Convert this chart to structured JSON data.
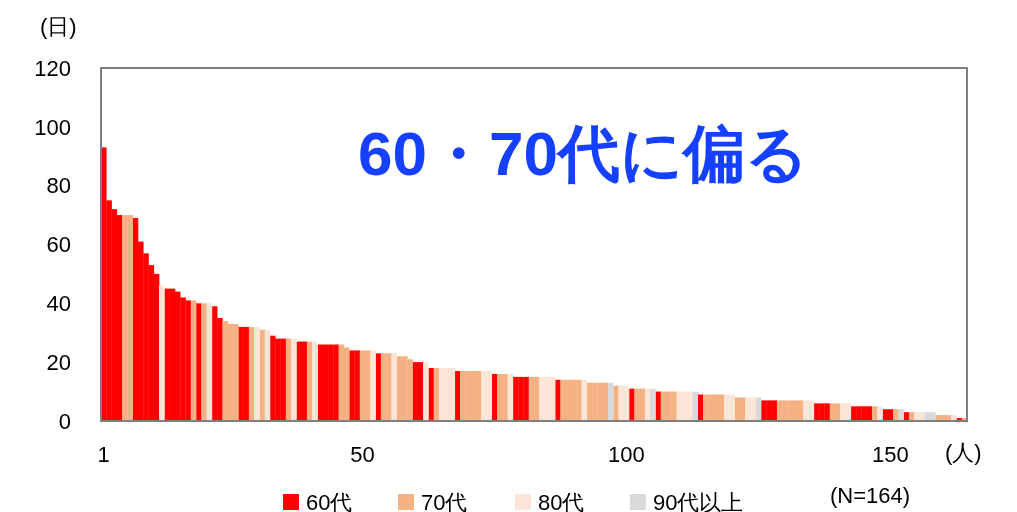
{
  "chart_data": {
    "type": "bar",
    "annotations": [
      "60・70代に偏る",
      "(N=164)"
    ],
    "xlabel": "(人)",
    "ylabel": "(日)",
    "ylim": [
      0,
      120
    ],
    "yticks": [
      0,
      20,
      40,
      60,
      80,
      100,
      120
    ],
    "grid": false,
    "legend": "bottom",
    "categories": [
      "1",
      null,
      null,
      null,
      null,
      null,
      null,
      null,
      null,
      null,
      null,
      null,
      null,
      null,
      null,
      null,
      null,
      null,
      null,
      null,
      null,
      null,
      null,
      null,
      null,
      null,
      null,
      null,
      null,
      null,
      null,
      null,
      null,
      null,
      null,
      null,
      null,
      null,
      null,
      null,
      null,
      null,
      null,
      null,
      null,
      null,
      null,
      null,
      null,
      "50",
      null,
      null,
      null,
      null,
      null,
      null,
      null,
      null,
      null,
      null,
      null,
      null,
      null,
      null,
      null,
      null,
      null,
      null,
      null,
      null,
      null,
      null,
      null,
      null,
      null,
      null,
      null,
      null,
      null,
      null,
      null,
      null,
      null,
      null,
      null,
      null,
      null,
      null,
      null,
      null,
      null,
      null,
      null,
      null,
      null,
      null,
      null,
      null,
      null,
      "100",
      null,
      null,
      null,
      null,
      null,
      null,
      null,
      null,
      null,
      null,
      null,
      null,
      null,
      null,
      null,
      null,
      null,
      null,
      null,
      null,
      null,
      null,
      null,
      null,
      null,
      null,
      null,
      null,
      null,
      null,
      null,
      null,
      null,
      null,
      null,
      null,
      null,
      null,
      null,
      null,
      null,
      null,
      null,
      null,
      null,
      null,
      null,
      null,
      null,
      "150",
      null,
      null,
      null,
      null,
      null,
      null,
      null,
      null,
      null,
      null,
      null,
      null,
      null,
      null
    ],
    "series": [
      {
        "name": "60代",
        "color": "#ff0000",
        "values": [
          93,
          75,
          72,
          70,
          null,
          null,
          69,
          61,
          57,
          53,
          50,
          null,
          45,
          45,
          44,
          42,
          41,
          null,
          40,
          null,
          null,
          39,
          35,
          null,
          null,
          null,
          32,
          32,
          null,
          null,
          null,
          null,
          29,
          28,
          28,
          null,
          null,
          27,
          27,
          null,
          null,
          26,
          26,
          26,
          26,
          null,
          null,
          24,
          24,
          null,
          null,
          null,
          23,
          null,
          null,
          null,
          null,
          null,
          null,
          20,
          20,
          null,
          18,
          null,
          null,
          null,
          null,
          17,
          null,
          null,
          null,
          null,
          null,
          null,
          16,
          null,
          null,
          null,
          15,
          15,
          15,
          null,
          null,
          null,
          null,
          null,
          14,
          null,
          null,
          null,
          null,
          null,
          null,
          null,
          null,
          null,
          null,
          null,
          null,
          null,
          11,
          null,
          null,
          null,
          null,
          10,
          null,
          null,
          null,
          null,
          null,
          null,
          null,
          9,
          null,
          null,
          null,
          null,
          null,
          null,
          null,
          null,
          null,
          null,
          null,
          7,
          7,
          7,
          null,
          null,
          null,
          null,
          null,
          null,
          null,
          6,
          6,
          6,
          null,
          null,
          null,
          null,
          5,
          5,
          5,
          5,
          null,
          null,
          4,
          4,
          null,
          null,
          3,
          null,
          null,
          null,
          null,
          null,
          null,
          null,
          null,
          null,
          1,
          null
        ]
      },
      {
        "name": "70代",
        "color": "#f4b183",
        "values": [
          null,
          null,
          null,
          null,
          70,
          70,
          null,
          null,
          null,
          null,
          null,
          null,
          null,
          null,
          null,
          null,
          null,
          41,
          null,
          40,
          null,
          null,
          null,
          34,
          33,
          33,
          null,
          null,
          32,
          null,
          31,
          null,
          null,
          null,
          null,
          28,
          null,
          null,
          null,
          27,
          null,
          null,
          null,
          null,
          null,
          26,
          25,
          null,
          null,
          24,
          24,
          null,
          null,
          23,
          23,
          null,
          22,
          22,
          21,
          null,
          null,
          null,
          null,
          18,
          null,
          null,
          null,
          null,
          17,
          17,
          17,
          17,
          null,
          null,
          null,
          16,
          16,
          null,
          null,
          null,
          null,
          15,
          15,
          null,
          null,
          null,
          null,
          14,
          14,
          14,
          14,
          null,
          13,
          13,
          13,
          13,
          null,
          12,
          null,
          null,
          null,
          11,
          11,
          null,
          null,
          null,
          10,
          10,
          10,
          null,
          null,
          null,
          null,
          null,
          9,
          9,
          9,
          9,
          null,
          null,
          8,
          8,
          null,
          null,
          null,
          null,
          null,
          null,
          7,
          7,
          7,
          7,
          7,
          null,
          null,
          null,
          null,
          null,
          6,
          6,
          null,
          null,
          null,
          null,
          null,
          null,
          5,
          null,
          null,
          null,
          4,
          null,
          null,
          3,
          null,
          null,
          null,
          null,
          2,
          2,
          2,
          null,
          null,
          1
        ]
      },
      {
        "name": "80代",
        "color": "#fbe5d6",
        "values": [
          null,
          null,
          null,
          null,
          null,
          null,
          null,
          null,
          null,
          null,
          null,
          46,
          null,
          null,
          null,
          null,
          null,
          null,
          null,
          null,
          40,
          null,
          null,
          null,
          null,
          null,
          null,
          null,
          null,
          32,
          null,
          31,
          null,
          null,
          null,
          null,
          28,
          null,
          null,
          null,
          27,
          null,
          null,
          null,
          null,
          null,
          null,
          null,
          null,
          null,
          null,
          24,
          null,
          null,
          null,
          23,
          null,
          null,
          null,
          null,
          null,
          20,
          null,
          null,
          18,
          18,
          18,
          null,
          null,
          null,
          null,
          null,
          17,
          17,
          null,
          null,
          null,
          16,
          null,
          null,
          null,
          null,
          null,
          15,
          15,
          15,
          null,
          null,
          null,
          null,
          null,
          14,
          null,
          null,
          null,
          null,
          null,
          null,
          12,
          12,
          null,
          null,
          null,
          11,
          null,
          null,
          null,
          null,
          null,
          10,
          10,
          10,
          null,
          null,
          null,
          null,
          null,
          null,
          9,
          9,
          null,
          null,
          8,
          8,
          null,
          null,
          null,
          null,
          null,
          null,
          null,
          null,
          null,
          7,
          7,
          null,
          null,
          null,
          null,
          null,
          6,
          6,
          null,
          null,
          null,
          null,
          null,
          5,
          null,
          null,
          null,
          null,
          null,
          null,
          3,
          3,
          null,
          null,
          null,
          null,
          null,
          2,
          null,
          null
        ]
      },
      {
        "name": "90代以上",
        "color": "#d9d9d9",
        "values": [
          null,
          null,
          null,
          null,
          null,
          null,
          null,
          null,
          null,
          null,
          null,
          null,
          null,
          null,
          null,
          null,
          null,
          null,
          null,
          null,
          null,
          null,
          null,
          null,
          null,
          null,
          null,
          null,
          null,
          null,
          null,
          null,
          null,
          null,
          null,
          null,
          null,
          null,
          null,
          null,
          null,
          null,
          null,
          null,
          null,
          null,
          null,
          null,
          null,
          null,
          null,
          null,
          null,
          null,
          null,
          null,
          null,
          null,
          null,
          null,
          null,
          null,
          null,
          null,
          null,
          null,
          null,
          null,
          null,
          null,
          null,
          null,
          null,
          null,
          null,
          null,
          null,
          null,
          null,
          null,
          null,
          null,
          null,
          null,
          null,
          null,
          null,
          null,
          null,
          null,
          null,
          null,
          null,
          null,
          null,
          null,
          13,
          null,
          null,
          null,
          null,
          null,
          null,
          null,
          11,
          null,
          null,
          null,
          null,
          null,
          null,
          null,
          10,
          null,
          null,
          null,
          null,
          null,
          null,
          null,
          null,
          null,
          null,
          null,
          8,
          null,
          null,
          null,
          null,
          null,
          null,
          null,
          null,
          null,
          null,
          null,
          null,
          null,
          null,
          null,
          null,
          null,
          null,
          null,
          null,
          null,
          null,
          null,
          null,
          null,
          null,
          4,
          null,
          null,
          null,
          null,
          3,
          3,
          null,
          null,
          null,
          null,
          null,
          null
        ]
      }
    ]
  }
}
